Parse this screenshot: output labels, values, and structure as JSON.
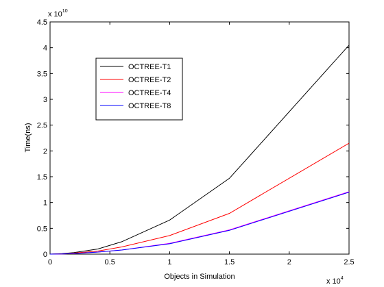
{
  "chart_data": {
    "type": "line",
    "xlabel": "Objects in Simulation",
    "ylabel": "Time(ns)",
    "x_multiplier_label": "x 10",
    "x_multiplier_exponent": "4",
    "y_multiplier_label": "x 10",
    "y_multiplier_exponent": "10",
    "xlim": [
      0,
      2.5
    ],
    "ylim": [
      0,
      4.5
    ],
    "xticks": [
      "0",
      "0.5",
      "1",
      "1.5",
      "2",
      "2.5"
    ],
    "yticks": [
      "0",
      "0.5",
      "1",
      "1.5",
      "2",
      "2.5",
      "3",
      "3.5",
      "4",
      "4.5"
    ],
    "grid": false,
    "legend_position": "upper-left",
    "x": [
      0,
      0.1,
      0.2,
      0.4,
      0.6,
      1.0,
      1.5,
      2.5
    ],
    "series": [
      {
        "name": "OCTREE-T1",
        "color": "#000000",
        "values": [
          0,
          0.01,
          0.03,
          0.1,
          0.24,
          0.66,
          1.47,
          4.05
        ]
      },
      {
        "name": "OCTREE-T2",
        "color": "#ff0000",
        "values": [
          0,
          0.005,
          0.02,
          0.06,
          0.14,
          0.36,
          0.79,
          2.15
        ]
      },
      {
        "name": "OCTREE-T4",
        "color": "#ff00ff",
        "values": [
          0,
          0.003,
          0.01,
          0.04,
          0.08,
          0.21,
          0.47,
          1.21
        ]
      },
      {
        "name": "OCTREE-T8",
        "color": "#0000ff",
        "values": [
          0,
          0.003,
          0.01,
          0.04,
          0.08,
          0.2,
          0.46,
          1.2
        ]
      }
    ]
  }
}
